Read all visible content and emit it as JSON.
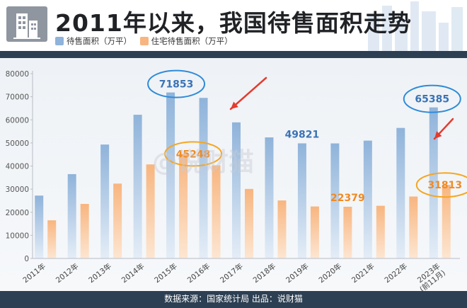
{
  "header": {
    "title": "2011年以来，我国待售面积走势"
  },
  "watermark": "@说财猫",
  "footer": {
    "source_text": "数据来源：国家统计局  出品：说财猫"
  },
  "colors": {
    "blue_bar_top": "#8fb3da",
    "blue_bar_bottom": "#e4edf7",
    "orange_bar_top": "#f8b57f",
    "orange_bar_bottom": "#fde6d2",
    "blue_highlight": "#2f8bd8",
    "orange_highlight": "#f5a623",
    "blue_label": "#3b73b5",
    "orange_label": "#f08a24",
    "arrow_red": "#e43b2f",
    "dark_band": "#2d3f52"
  },
  "chart_data": {
    "type": "bar",
    "title": "2011年以来，我国待售面积走势",
    "categories": [
      "2011年",
      "2012年",
      "2013年",
      "2014年",
      "2015年",
      "2016年",
      "2017年",
      "2018年",
      "2019年",
      "2020年",
      "2021年",
      "2022年",
      "2023年\n(前11月)"
    ],
    "series": [
      {
        "name": "待售面积（万平）",
        "values": [
          27200,
          36500,
          49300,
          62200,
          71853,
          69500,
          58900,
          52400,
          49821,
          49800,
          51000,
          56500,
          65385
        ]
      },
      {
        "name": "住宅待售面积（万平）",
        "values": [
          16500,
          23600,
          32400,
          40700,
          45248,
          40300,
          30100,
          25100,
          22500,
          22379,
          22800,
          26800,
          31813
        ]
      }
    ],
    "ylim": [
      0,
      80000
    ],
    "yticks": [
      0,
      10000,
      20000,
      30000,
      40000,
      50000,
      60000,
      70000,
      80000
    ],
    "grid": false,
    "legend": "top-left",
    "annotations": [
      {
        "text": "71853",
        "series": 0,
        "index": 4,
        "highlight": "ellipse"
      },
      {
        "text": "45248",
        "series": 1,
        "index": 4,
        "highlight": "ellipse"
      },
      {
        "text": "49821",
        "series": 0,
        "index": 8
      },
      {
        "text": "22379",
        "series": 1,
        "index": 9
      },
      {
        "text": "65385",
        "series": 0,
        "index": 12,
        "highlight": "ellipse"
      },
      {
        "text": "31813",
        "series": 1,
        "index": 12,
        "highlight": "ellipse"
      }
    ]
  }
}
